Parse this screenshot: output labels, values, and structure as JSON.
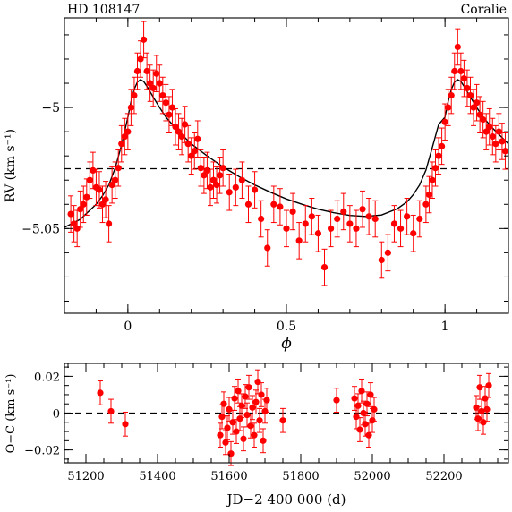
{
  "chart_data": [
    {
      "type": "scatter",
      "title_left": "HD 108147",
      "title_right": "Coralie",
      "xlabel": "ϕ",
      "ylabel": "RV (km s⁻¹)",
      "xlim": [
        -0.2,
        1.2
      ],
      "ylim": [
        -5.085,
        -4.963
      ],
      "x_ticks": [
        0,
        0.5,
        1
      ],
      "x_tick_labels": [
        "0",
        "0.5",
        "1"
      ],
      "y_ticks": [
        -5.05,
        -5.0
      ],
      "y_tick_labels": [
        "−5.05",
        "−5"
      ],
      "grid": false,
      "reference_line": {
        "y": -5.0253,
        "style": "dashed"
      },
      "series": [
        {
          "kind": "points-with-errorbars",
          "color": "#ff0000",
          "err": 0.0075,
          "x": [
            -0.18,
            -0.17,
            -0.16,
            -0.15,
            -0.14,
            -0.13,
            -0.12,
            -0.11,
            -0.1,
            -0.09,
            -0.08,
            -0.07,
            -0.06,
            -0.05,
            -0.04,
            -0.03,
            -0.02,
            -0.01,
            0.0,
            0.01,
            0.02,
            0.03,
            0.04,
            0.05,
            0.06,
            0.07,
            0.08,
            0.09,
            0.1,
            0.11,
            0.12,
            0.13,
            0.14,
            0.15,
            0.16,
            0.17,
            0.18,
            0.19,
            0.2,
            0.21,
            0.22,
            0.23,
            0.24,
            0.25,
            0.26,
            0.27,
            0.28,
            0.29,
            0.3,
            0.32,
            0.34,
            0.36,
            0.38,
            0.4,
            0.42,
            0.44,
            0.46,
            0.48,
            0.5,
            0.52,
            0.54,
            0.56,
            0.58,
            0.6,
            0.62,
            0.64,
            0.66,
            0.68,
            0.7,
            0.72,
            0.74,
            0.76,
            0.78,
            0.8,
            0.82,
            0.84,
            0.86,
            0.88,
            0.9,
            0.92,
            0.94,
            0.95,
            0.96,
            0.97,
            0.98,
            0.99,
            1.0,
            1.01,
            1.02,
            1.03,
            1.04,
            1.05,
            1.06,
            1.07,
            1.08,
            1.09,
            1.1,
            1.11,
            1.12,
            1.13,
            1.14,
            1.15,
            1.16,
            1.17,
            1.18,
            1.19
          ],
          "y": [
            -5.044,
            -5.048,
            -5.05,
            -5.042,
            -5.04,
            -5.037,
            -5.03,
            -5.026,
            -5.033,
            -5.034,
            -5.04,
            -5.038,
            -5.048,
            -5.032,
            -5.03,
            -5.025,
            -5.015,
            -5.012,
            -5.01,
            -5.0,
            -4.995,
            -4.985,
            -4.98,
            -4.972,
            -4.985,
            -4.99,
            -4.992,
            -4.986,
            -4.99,
            -4.995,
            -4.998,
            -5.003,
            -5.0,
            -5.008,
            -5.01,
            -5.012,
            -5.007,
            -5.015,
            -5.02,
            -5.018,
            -5.013,
            -5.025,
            -5.028,
            -5.026,
            -5.033,
            -5.03,
            -5.032,
            -5.028,
            -5.025,
            -5.035,
            -5.033,
            -5.03,
            -5.04,
            -5.034,
            -5.046,
            -5.058,
            -5.04,
            -5.041,
            -5.05,
            -5.043,
            -5.055,
            -5.048,
            -5.045,
            -5.052,
            -5.066,
            -5.05,
            -5.046,
            -5.043,
            -5.048,
            -5.05,
            -5.042,
            -5.045,
            -5.046,
            -5.063,
            -5.06,
            -5.048,
            -5.05,
            -5.045,
            -5.052,
            -5.046,
            -5.04,
            -5.036,
            -5.03,
            -5.025,
            -5.02,
            -5.016,
            -5.006,
            -5.0,
            -4.995,
            -4.985,
            -4.975,
            -4.985,
            -4.988,
            -4.992,
            -4.995,
            -5.0,
            -4.998,
            -5.003,
            -5.005,
            -5.01,
            -5.008,
            -5.012,
            -5.015,
            -5.01,
            -5.014,
            -5.018
          ]
        },
        {
          "kind": "model-curve",
          "color": "#000000",
          "x": [
            -0.2,
            -0.15,
            -0.1,
            -0.08,
            -0.06,
            -0.04,
            -0.02,
            0.0,
            0.01,
            0.02,
            0.03,
            0.04,
            0.05,
            0.06,
            0.08,
            0.1,
            0.12,
            0.15,
            0.2,
            0.25,
            0.3,
            0.35,
            0.4,
            0.45,
            0.5,
            0.55,
            0.6,
            0.65,
            0.7,
            0.75,
            0.8,
            0.85,
            0.88,
            0.9,
            0.92,
            0.94,
            0.96,
            0.98,
            1.0,
            1.01,
            1.02,
            1.03,
            1.04,
            1.05,
            1.06,
            1.08,
            1.1,
            1.12,
            1.15,
            1.2
          ],
          "y": [
            -5.0495,
            -5.0462,
            -5.04,
            -5.0365,
            -5.032,
            -5.025,
            -5.0155,
            -5.004,
            -4.9975,
            -4.9925,
            -4.9895,
            -4.9885,
            -4.9893,
            -4.9912,
            -4.9957,
            -5.0,
            -5.004,
            -5.0085,
            -5.015,
            -5.02,
            -5.0245,
            -5.0285,
            -5.032,
            -5.035,
            -5.0378,
            -5.04,
            -5.042,
            -5.0435,
            -5.0446,
            -5.045,
            -5.0444,
            -5.0418,
            -5.039,
            -5.036,
            -5.032,
            -5.0258,
            -5.0165,
            -5.007,
            -5.004,
            -4.9975,
            -4.9925,
            -4.9895,
            -4.9885,
            -4.9893,
            -4.9912,
            -4.9957,
            -5.0,
            -5.004,
            -5.0085,
            -5.015
          ]
        }
      ]
    },
    {
      "type": "scatter",
      "xlabel": "JD−2 400 000 (d)",
      "ylabel": "O−C (km s⁻¹)",
      "xlim": [
        51140,
        52380
      ],
      "ylim": [
        -0.027,
        0.027
      ],
      "x_ticks": [
        51200,
        51400,
        51600,
        51800,
        52000,
        52200
      ],
      "x_tick_labels": [
        "51200",
        "51400",
        "51600",
        "51800",
        "52000",
        "52200"
      ],
      "y_ticks": [
        -0.02,
        0,
        0.02
      ],
      "y_tick_labels": [
        "−0.02",
        "0",
        "0.02"
      ],
      "grid": false,
      "reference_line": {
        "y": 0,
        "style": "dashed"
      },
      "series": [
        {
          "kind": "points-with-errorbars",
          "color": "#ff0000",
          "err": 0.0065,
          "x": [
            51240,
            51270,
            51310,
            51575,
            51580,
            51585,
            51590,
            51595,
            51600,
            51605,
            51610,
            51615,
            51620,
            51625,
            51630,
            51635,
            51640,
            51645,
            51650,
            51655,
            51660,
            51665,
            51670,
            51675,
            51680,
            51685,
            51690,
            51695,
            51700,
            51705,
            51750,
            51900,
            51950,
            51955,
            51960,
            51965,
            51970,
            51975,
            51980,
            51985,
            51990,
            51995,
            52000,
            52005,
            52290,
            52295,
            52300,
            52305,
            52310,
            52315,
            52320,
            52325
          ],
          "y": [
            0.011,
            0.001,
            -0.006,
            -0.012,
            -0.002,
            0.005,
            -0.016,
            -0.008,
            0.002,
            -0.022,
            -0.005,
            0.008,
            -0.01,
            0.012,
            -0.003,
            0.004,
            -0.014,
            0.009,
            -0.001,
            0.014,
            -0.007,
            0.003,
            -0.012,
            0.006,
            0.017,
            -0.004,
            0.01,
            -0.015,
            0.001,
            0.007,
            -0.004,
            0.007,
            0.008,
            -0.002,
            0.004,
            -0.009,
            0.012,
            0.0,
            -0.006,
            0.005,
            -0.012,
            0.01,
            -0.004,
            0.002,
            0.003,
            -0.003,
            0.014,
            0.001,
            -0.005,
            0.008,
            0.002,
            0.015
          ]
        }
      ]
    }
  ]
}
